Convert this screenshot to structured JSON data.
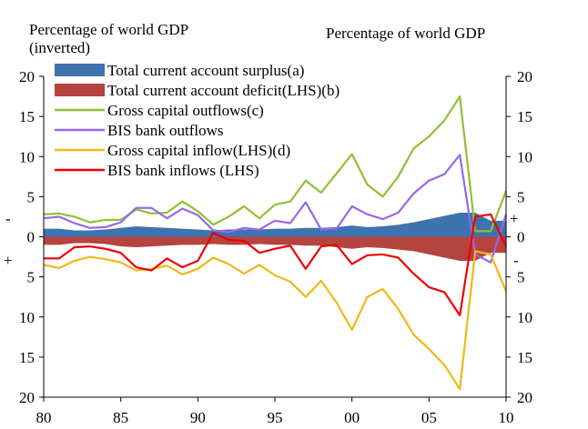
{
  "chart_data": {
    "type": "area+line",
    "left_axis_title": [
      "Percentage of world GDP",
      "(inverted)"
    ],
    "right_axis_title": "Percentage of world GDP",
    "x_ticks": [
      "80",
      "85",
      "90",
      "95",
      "00",
      "05",
      "10"
    ],
    "y_ticks_left": [
      "20",
      "15",
      "10",
      "5",
      "0",
      "5",
      "10",
      "15",
      "20"
    ],
    "y_ticks_right": [
      "20",
      "15",
      "10",
      "5",
      "0",
      "5",
      "10",
      "15",
      "20"
    ],
    "sign_markers": {
      "left_upper": "-",
      "left_lower": "+",
      "right_upper": "+",
      "right_lower": "-"
    },
    "x": [
      1980,
      1981,
      1982,
      1983,
      1984,
      1985,
      1986,
      1987,
      1988,
      1989,
      1990,
      1991,
      1992,
      1993,
      1994,
      1995,
      1996,
      1997,
      1998,
      1999,
      2000,
      2001,
      2002,
      2003,
      2004,
      2005,
      2006,
      2007,
      2008,
      2009,
      2010
    ],
    "ylim": [
      -20,
      20
    ],
    "grid": false,
    "legend": "top-left",
    "series": [
      {
        "name": "Total current account surplus(a)",
        "kind": "area",
        "color": "#3e73b0",
        "values": [
          1.0,
          1.0,
          0.8,
          0.8,
          0.9,
          1.1,
          1.3,
          1.2,
          1.1,
          1.0,
          0.9,
          0.8,
          0.9,
          0.9,
          0.9,
          1.0,
          1.0,
          1.1,
          1.1,
          1.2,
          1.4,
          1.2,
          1.3,
          1.5,
          1.8,
          2.2,
          2.6,
          3.0,
          3.0,
          2.0,
          2.0
        ]
      },
      {
        "name": "Total current account deficit(LHS)(b)",
        "kind": "area",
        "color": "#b5443f",
        "values": [
          -1.0,
          -1.0,
          -0.8,
          -0.8,
          -0.9,
          -1.2,
          -1.3,
          -1.2,
          -1.1,
          -1.0,
          -1.0,
          -0.9,
          -1.0,
          -1.0,
          -0.9,
          -1.0,
          -1.0,
          -1.1,
          -1.1,
          -1.3,
          -1.5,
          -1.3,
          -1.4,
          -1.6,
          -1.8,
          -2.2,
          -2.6,
          -3.0,
          -3.0,
          -2.0,
          -2.0
        ]
      },
      {
        "name": "Gross capital outflows(c)",
        "kind": "line",
        "color": "#90c030",
        "values": [
          2.8,
          2.9,
          2.5,
          1.8,
          2.1,
          2.1,
          3.4,
          2.9,
          3.0,
          4.4,
          3.2,
          1.5,
          2.5,
          3.8,
          2.3,
          4.0,
          4.4,
          7.0,
          5.5,
          7.9,
          10.3,
          6.5,
          5.0,
          7.5,
          11.0,
          12.5,
          14.5,
          17.5,
          0.7,
          0.7,
          5.7
        ]
      },
      {
        "name": "BIS bank outflows",
        "kind": "line",
        "color": "#9966ee",
        "values": [
          2.3,
          2.5,
          1.7,
          1.1,
          1.2,
          1.8,
          3.6,
          3.6,
          2.3,
          3.5,
          2.7,
          0.8,
          0.6,
          1.1,
          0.9,
          2.0,
          1.7,
          4.3,
          0.9,
          1.0,
          3.8,
          2.8,
          2.2,
          3.0,
          5.4,
          7.0,
          7.8,
          10.2,
          -2.2,
          -3.2,
          2.8
        ]
      },
      {
        "name": "Gross capital inflow(LHS)(d)",
        "kind": "line",
        "color": "#f0b814",
        "values": [
          -3.5,
          -3.9,
          -3.0,
          -2.5,
          -2.8,
          -3.2,
          -4.2,
          -4.0,
          -3.6,
          -4.7,
          -4.0,
          -2.6,
          -3.4,
          -4.6,
          -3.5,
          -4.8,
          -5.6,
          -7.5,
          -5.5,
          -8.2,
          -11.6,
          -7.5,
          -6.5,
          -9.0,
          -12.2,
          -14.0,
          -16.0,
          -19.0,
          -1.8,
          -2.2,
          -6.8
        ]
      },
      {
        "name": "BIS bank inflows (LHS)",
        "kind": "line",
        "color": "#ee0000",
        "values": [
          -2.7,
          -2.7,
          -1.3,
          -1.2,
          -1.5,
          -2.0,
          -3.8,
          -4.2,
          -2.7,
          -3.8,
          -3.0,
          0.5,
          -0.4,
          -0.5,
          -2.0,
          -1.5,
          -1.1,
          -4.0,
          -1.2,
          -1.0,
          -3.4,
          -2.3,
          -2.2,
          -2.6,
          -4.6,
          -6.3,
          -6.9,
          -9.8,
          2.5,
          2.8,
          -1.2
        ]
      }
    ]
  }
}
